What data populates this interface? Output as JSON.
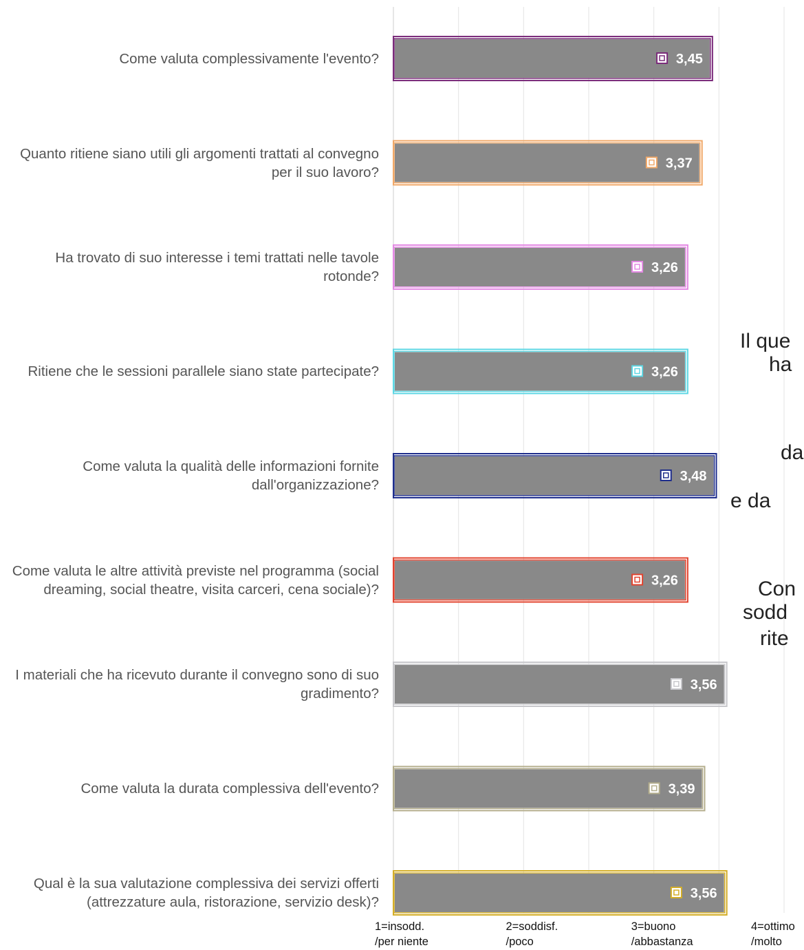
{
  "chart_data": {
    "type": "bar",
    "orientation": "horizontal",
    "categories": [
      "Come valuta complessivamente l'evento?",
      "Quanto ritiene siano utili gli argomenti trattati al convegno per il suo lavoro?",
      "Ha trovato di suo interesse i temi trattati nelle tavole rotonde?",
      "Ritiene che le sessioni parallele siano state partecipate?",
      "Come valuta la qualità delle informazioni fornite dall'organizzazione?",
      "Come valuta le altre attività previste nel programma (social dreaming, social theatre, visita carceri, cena sociale)?",
      "I materiali che ha ricevuto durante il convegno sono di suo gradimento?",
      "Come valuta la durata complessiva dell'evento?",
      "Qual è la sua valutazione complessiva dei servizi offerti (attrezzature aula, ristorazione, servizio desk)?"
    ],
    "values": [
      3.45,
      3.37,
      3.26,
      3.26,
      3.48,
      3.26,
      3.56,
      3.39,
      3.56
    ],
    "value_labels": [
      "3,45",
      "3,37",
      "3,26",
      "3,26",
      "3,48",
      "3,26",
      "3,56",
      "3,39",
      "3,56"
    ],
    "bar_fill": "#898989",
    "outline_colors": [
      "#7B2C7B",
      "#F0A868",
      "#E48AE4",
      "#5ED7E4",
      "#1F2E8C",
      "#E2432E",
      "#C8C8CC",
      "#B4AE8C",
      "#D4AE28"
    ],
    "xlim": [
      1,
      4
    ],
    "xticks": [
      1,
      1.5,
      2,
      2.5,
      3,
      3.5,
      4
    ],
    "xtick_labels": [
      {
        "value": 1,
        "lines": [
          "1=insodd.",
          "/per niente"
        ]
      },
      {
        "value": 2,
        "lines": [
          "2=soddisf.",
          "/poco"
        ]
      },
      {
        "value": 3,
        "lines": [
          "3=buono",
          "/abbastanza"
        ]
      },
      {
        "value": 4,
        "lines": [
          "4=ottimo",
          "/molto"
        ]
      }
    ],
    "grid": true,
    "gridline_color": "#E3E3E3"
  },
  "side_text": {
    "lines": [
      "Il que",
      "ha",
      "da",
      "e da",
      "Con",
      "sodd",
      "rite"
    ]
  }
}
